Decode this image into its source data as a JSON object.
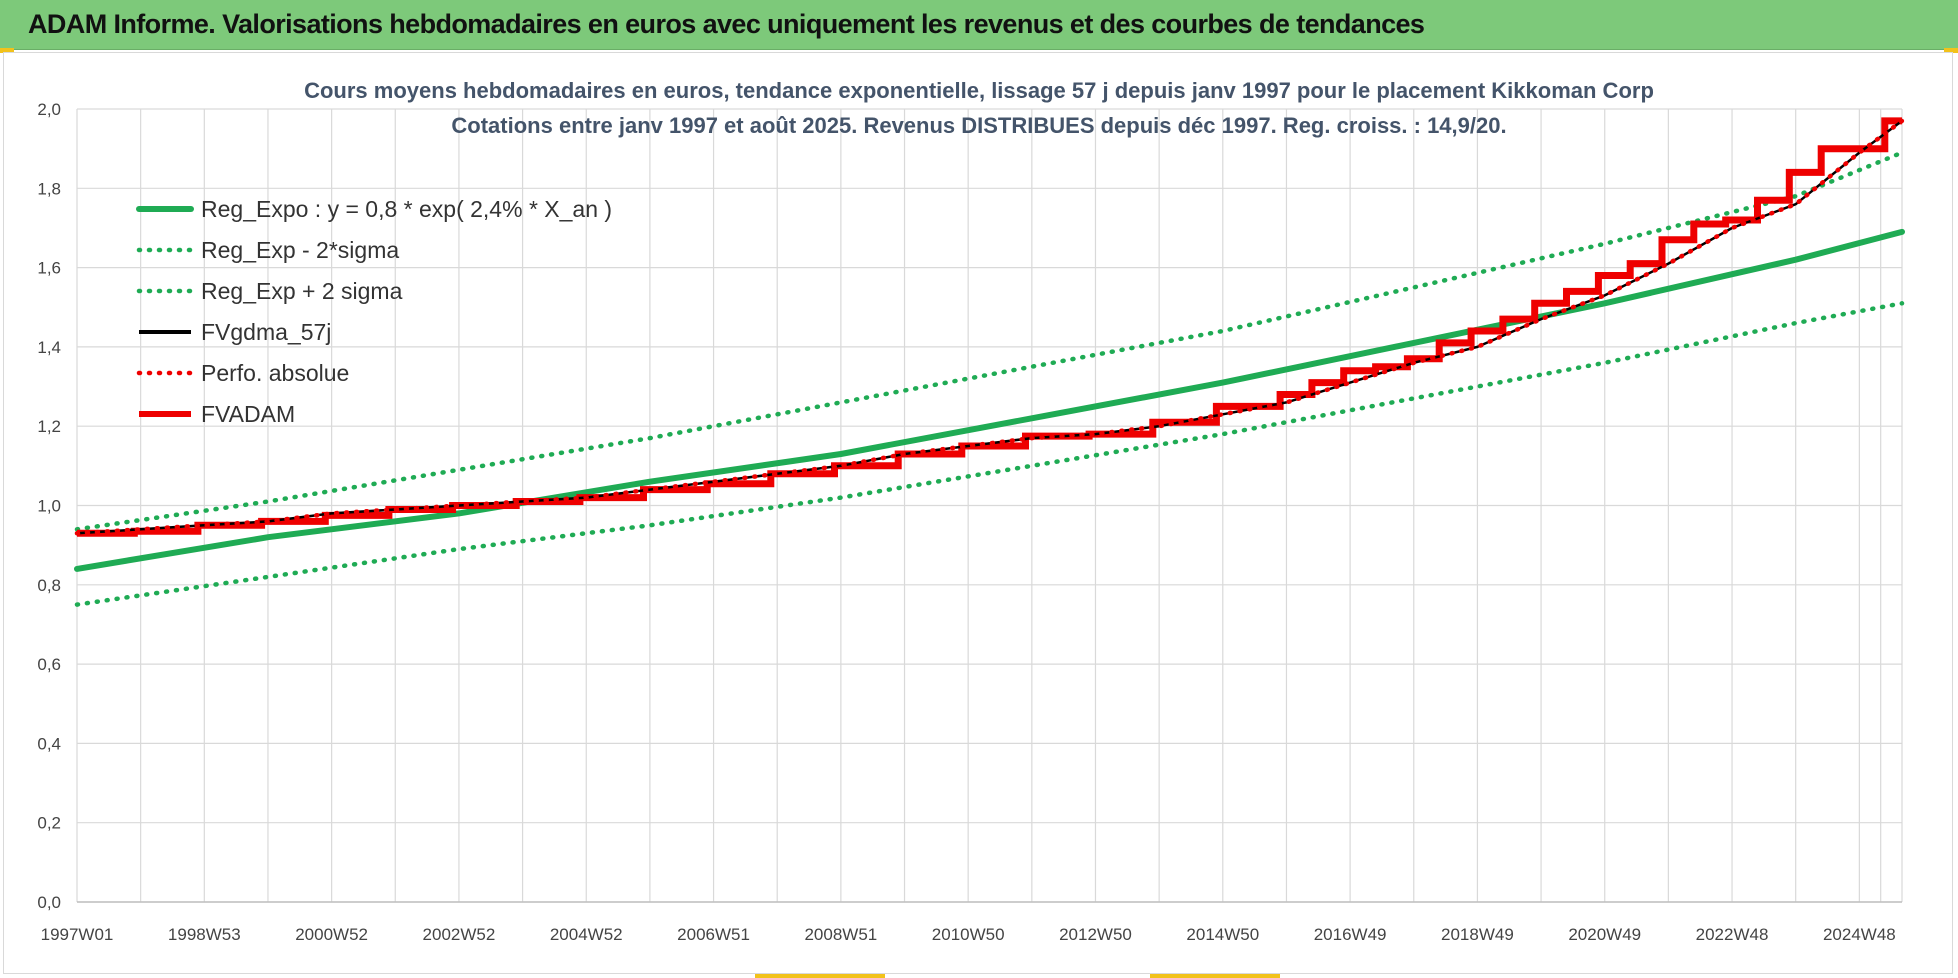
{
  "header": {
    "title": "ADAM Informe. Valorisations hebdomadaires en euros avec uniquement les revenus et des courbes de tendances"
  },
  "colors": {
    "header_bg": "#7dc97a",
    "trend_green": "#1fab54",
    "adam_red": "#ee0000",
    "black": "#000000",
    "grid": "#d9d9d9",
    "accent_yellow": "#f2c21b"
  },
  "chart_data": {
    "type": "line",
    "title": [
      "Cours moyens hebdomadaires en euros, tendance exponentielle, lissage 57 j depuis janv 1997  pour le placement Kikkoman Corp",
      "Cotations entre janv 1997 et août 2025. Revenus DISTRIBUES depuis déc 1997. Reg. croiss. : 14,9/20."
    ],
    "xlabel": "",
    "ylabel": "",
    "x_range": [
      1997.0,
      2025.67
    ],
    "ylim": [
      0,
      2.0
    ],
    "y_ticks": [
      "0,0",
      "0,2",
      "0,4",
      "0,6",
      "0,8",
      "1,0",
      "1,2",
      "1,4",
      "1,6",
      "1,8",
      "2,0"
    ],
    "x_ticks": [
      {
        "label": "1997W01",
        "x": 1997.0
      },
      {
        "label": "1998W53",
        "x": 1999.0
      },
      {
        "label": "2000W52",
        "x": 2001.0
      },
      {
        "label": "2002W52",
        "x": 2003.0
      },
      {
        "label": "2004W52",
        "x": 2005.0
      },
      {
        "label": "2006W51",
        "x": 2007.0
      },
      {
        "label": "2008W51",
        "x": 2009.0
      },
      {
        "label": "2010W50",
        "x": 2011.0
      },
      {
        "label": "2012W50",
        "x": 2013.0
      },
      {
        "label": "2014W50",
        "x": 2015.0
      },
      {
        "label": "2016W49",
        "x": 2017.0
      },
      {
        "label": "2018W49",
        "x": 2019.0
      },
      {
        "label": "2020W49",
        "x": 2021.0
      },
      {
        "label": "2022W48",
        "x": 2023.0
      },
      {
        "label": "2024W48",
        "x": 2025.0
      }
    ],
    "grid": true,
    "legend_position": "top-left",
    "series": [
      {
        "name": "Reg_Expo : y = 0,8 * exp( 2,4% *  X_an )",
        "style": "solid-thick",
        "color": "#1fab54",
        "x": [
          1997.0,
          2000.0,
          2003.0,
          2006.0,
          2009.0,
          2012.0,
          2015.0,
          2018.0,
          2021.0,
          2024.0,
          2025.67
        ],
        "y": [
          0.84,
          0.92,
          0.98,
          1.06,
          1.13,
          1.22,
          1.31,
          1.41,
          1.51,
          1.62,
          1.69
        ]
      },
      {
        "name": "Reg_Exp - 2*sigma",
        "style": "dotted",
        "color": "#1fab54",
        "x": [
          1997.0,
          2000.0,
          2003.0,
          2006.0,
          2009.0,
          2012.0,
          2015.0,
          2018.0,
          2021.0,
          2024.0,
          2025.67
        ],
        "y": [
          0.75,
          0.82,
          0.89,
          0.95,
          1.02,
          1.1,
          1.18,
          1.27,
          1.36,
          1.46,
          1.51
        ]
      },
      {
        "name": "Reg_Exp + 2 sigma",
        "style": "dotted",
        "color": "#1fab54",
        "x": [
          1997.0,
          2000.0,
          2003.0,
          2006.0,
          2009.0,
          2012.0,
          2015.0,
          2018.0,
          2021.0,
          2024.0,
          2025.67
        ],
        "y": [
          0.94,
          1.01,
          1.09,
          1.17,
          1.26,
          1.35,
          1.44,
          1.55,
          1.66,
          1.78,
          1.89
        ]
      },
      {
        "name": "FVgdma_57j",
        "style": "solid",
        "color": "#000000",
        "x": [
          1997.0,
          1998.0,
          1999.0,
          2000.0,
          2001.0,
          2002.0,
          2003.0,
          2004.0,
          2005.0,
          2006.0,
          2007.0,
          2008.0,
          2009.0,
          2010.0,
          2011.0,
          2012.0,
          2013.0,
          2014.0,
          2015.0,
          2016.0,
          2017.0,
          2018.0,
          2019.0,
          2020.0,
          2021.0,
          2022.0,
          2023.0,
          2024.0,
          2025.0,
          2025.67
        ],
        "y": [
          0.93,
          0.94,
          0.95,
          0.96,
          0.98,
          0.99,
          1.0,
          1.01,
          1.02,
          1.04,
          1.06,
          1.08,
          1.1,
          1.13,
          1.15,
          1.17,
          1.18,
          1.2,
          1.23,
          1.26,
          1.31,
          1.36,
          1.4,
          1.47,
          1.53,
          1.61,
          1.7,
          1.76,
          1.89,
          1.97
        ]
      },
      {
        "name": "Perfo. absolue",
        "style": "dotted",
        "color": "#ee0000",
        "x": [
          1997.0,
          1998.0,
          1999.0,
          2000.0,
          2001.0,
          2002.0,
          2003.0,
          2004.0,
          2005.0,
          2006.0,
          2007.0,
          2008.0,
          2009.0,
          2010.0,
          2011.0,
          2012.0,
          2013.0,
          2014.0,
          2015.0,
          2016.0,
          2017.0,
          2018.0,
          2019.0,
          2020.0,
          2021.0,
          2022.0,
          2023.0,
          2024.0,
          2025.0,
          2025.67
        ],
        "y": [
          0.93,
          0.94,
          0.95,
          0.96,
          0.98,
          0.99,
          1.0,
          1.01,
          1.02,
          1.04,
          1.06,
          1.08,
          1.1,
          1.13,
          1.15,
          1.17,
          1.18,
          1.2,
          1.23,
          1.26,
          1.31,
          1.36,
          1.4,
          1.47,
          1.53,
          1.61,
          1.7,
          1.76,
          1.89,
          1.97
        ]
      },
      {
        "name": "FVADAM",
        "style": "step-thick",
        "color": "#ee0000",
        "x": [
          1997.0,
          1997.9,
          1998.9,
          1999.9,
          2000.9,
          2001.9,
          2002.9,
          2003.9,
          2004.9,
          2005.9,
          2006.9,
          2007.9,
          2008.9,
          2009.9,
          2010.9,
          2011.9,
          2012.9,
          2013.9,
          2014.9,
          2015.9,
          2016.4,
          2016.9,
          2017.4,
          2017.9,
          2018.4,
          2018.9,
          2019.4,
          2019.9,
          2020.4,
          2020.9,
          2021.4,
          2021.9,
          2022.4,
          2022.9,
          2023.4,
          2023.9,
          2024.4,
          2024.9,
          2025.4,
          2025.67
        ],
        "y": [
          0.93,
          0.935,
          0.95,
          0.96,
          0.975,
          0.99,
          1.0,
          1.01,
          1.02,
          1.04,
          1.055,
          1.08,
          1.1,
          1.13,
          1.15,
          1.175,
          1.18,
          1.21,
          1.25,
          1.28,
          1.31,
          1.34,
          1.35,
          1.37,
          1.41,
          1.44,
          1.47,
          1.51,
          1.54,
          1.58,
          1.61,
          1.67,
          1.71,
          1.72,
          1.77,
          1.84,
          1.9,
          1.9,
          1.97,
          1.97
        ]
      }
    ]
  }
}
